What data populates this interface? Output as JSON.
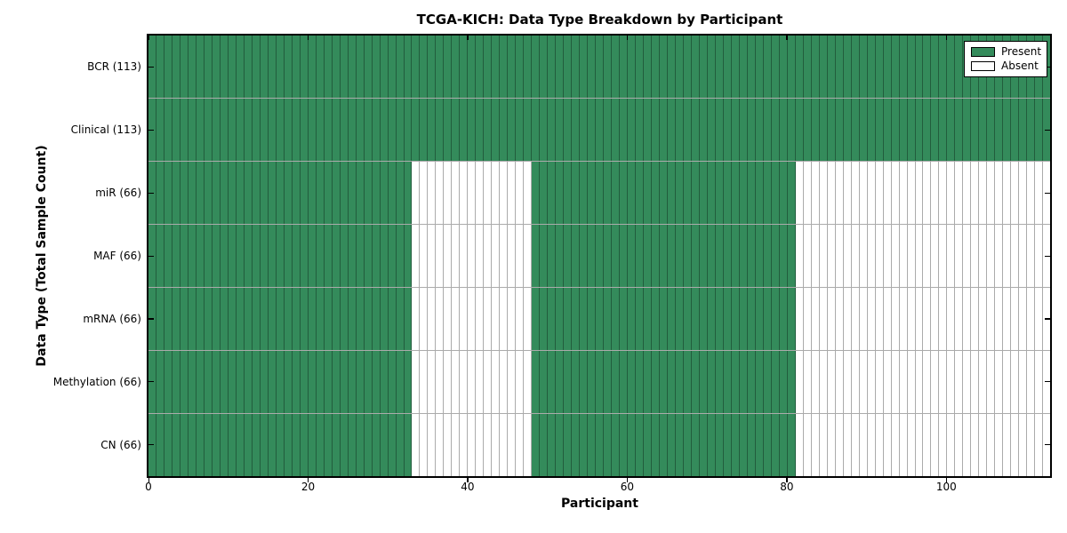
{
  "chart_data": {
    "type": "heatmap",
    "title": "TCGA-KICH: Data Type Breakdown by Participant",
    "xlabel": "Participant",
    "ylabel": "Data Type (Total Sample Count)",
    "x_ticks": [
      0,
      20,
      40,
      60,
      80,
      100
    ],
    "x_max": 113,
    "rows": [
      {
        "label": "BCR (113)",
        "data_type": "BCR",
        "total_samples": 113,
        "present_ranges": [
          [
            0,
            113
          ]
        ]
      },
      {
        "label": "Clinical (113)",
        "data_type": "Clinical",
        "total_samples": 113,
        "present_ranges": [
          [
            0,
            113
          ]
        ]
      },
      {
        "label": "miR (66)",
        "data_type": "miR",
        "total_samples": 66,
        "present_ranges": [
          [
            0,
            33
          ],
          [
            48,
            81
          ]
        ]
      },
      {
        "label": "MAF (66)",
        "data_type": "MAF",
        "total_samples": 66,
        "present_ranges": [
          [
            0,
            33
          ],
          [
            48,
            81
          ]
        ]
      },
      {
        "label": "mRNA (66)",
        "data_type": "mRNA",
        "total_samples": 66,
        "present_ranges": [
          [
            0,
            33
          ],
          [
            48,
            81
          ]
        ]
      },
      {
        "label": "Methylation (66)",
        "data_type": "Methylation",
        "total_samples": 66,
        "present_ranges": [
          [
            0,
            33
          ],
          [
            48,
            81
          ]
        ]
      },
      {
        "label": "CN (66)",
        "data_type": "CN",
        "total_samples": 66,
        "present_ranges": [
          [
            0,
            33
          ],
          [
            48,
            81
          ]
        ]
      }
    ],
    "legend": [
      {
        "label": "Present",
        "color": "#348b5b"
      },
      {
        "label": "Absent",
        "color": "#ffffff"
      }
    ],
    "colors": {
      "present": "#348b5b",
      "absent": "#ffffff",
      "cell_edge": "rgba(0,0,0,0.33)",
      "frame": "#000000"
    }
  }
}
